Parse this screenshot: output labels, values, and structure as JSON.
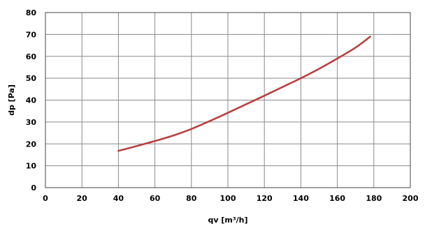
{
  "chart_data": {
    "type": "line",
    "title": "",
    "xlabel": "qv [m³/h]",
    "ylabel": "dp [Pa]",
    "xlim": [
      0,
      200
    ],
    "ylim": [
      0,
      80
    ],
    "x_ticks": [
      "0",
      "20",
      "40",
      "60",
      "80",
      "100",
      "120",
      "140",
      "160",
      "180",
      "200"
    ],
    "y_ticks": [
      "0",
      "10",
      "20",
      "30",
      "40",
      "50",
      "60",
      "70",
      "80"
    ],
    "grid": true,
    "legend": "none",
    "series": [
      {
        "color": "#b94040",
        "x": [
          40,
          50,
          60,
          70,
          80,
          90,
          100,
          110,
          120,
          130,
          140,
          150,
          160,
          170,
          178
        ],
        "y": [
          16.8,
          19.0,
          21.3,
          23.8,
          26.8,
          30.4,
          34.2,
          38.1,
          42.0,
          46.0,
          50.0,
          54.3,
          59.0,
          64.0,
          69.0
        ]
      }
    ]
  }
}
